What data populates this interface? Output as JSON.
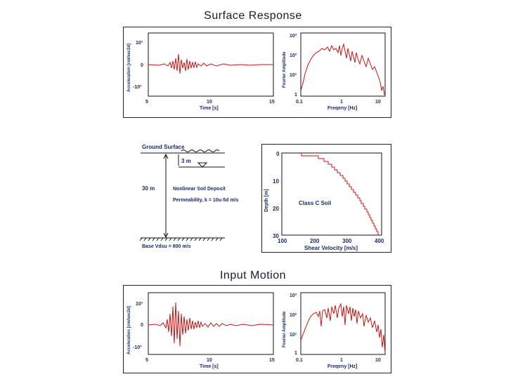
{
  "surface": {
    "title": "Surface Response",
    "accel": {
      "ylabel": "Acceleration [cm/sec2d]",
      "xlabel": "Time [s]",
      "xticks": [
        "5",
        "10",
        "15"
      ],
      "yticks": [
        "10³",
        "0",
        "-10³"
      ]
    },
    "fourier": {
      "ylabel": "Fourier Amplitude",
      "xlabel": "Freqeny [Hz]",
      "xticks": [
        "0.1",
        "1",
        "10"
      ],
      "yticks": [
        "10³",
        "10²",
        "10¹",
        "1"
      ]
    }
  },
  "profile": {
    "ground_surface": "Ground Surface",
    "water_depth": "3 m",
    "thickness": "30 m",
    "deposit": "Nonlinear Soil Deposit",
    "permeability": "Permeability, k = 10u-5d m/s",
    "base": "Base Vdsu = 800 m/s"
  },
  "velocity": {
    "ylabel": "Depth [m]",
    "xlabel": "Shear Velocity [m/s]",
    "xticks": [
      "100",
      "200",
      "300",
      "400"
    ],
    "yticks": [
      "0",
      "10",
      "20",
      "30"
    ],
    "annotation": "Class C Soil"
  },
  "input": {
    "title": "Input Motion",
    "accel": {
      "ylabel": "Acceleration [cm/sec2d]",
      "xlabel": "Time [s]",
      "xticks": [
        "5",
        "10",
        "15"
      ],
      "yticks": [
        "10³",
        "0",
        "-10³"
      ]
    },
    "fourier": {
      "ylabel": "Fourier Amplitude",
      "xlabel": "Freqeny [Hz]",
      "xticks": [
        "0.1",
        "1",
        "10"
      ],
      "yticks": [
        "10³",
        "10²",
        "10¹",
        "1"
      ]
    }
  },
  "colors": {
    "signal": "#c81414",
    "axis": "#111111",
    "label": "#1a2a6a"
  }
}
